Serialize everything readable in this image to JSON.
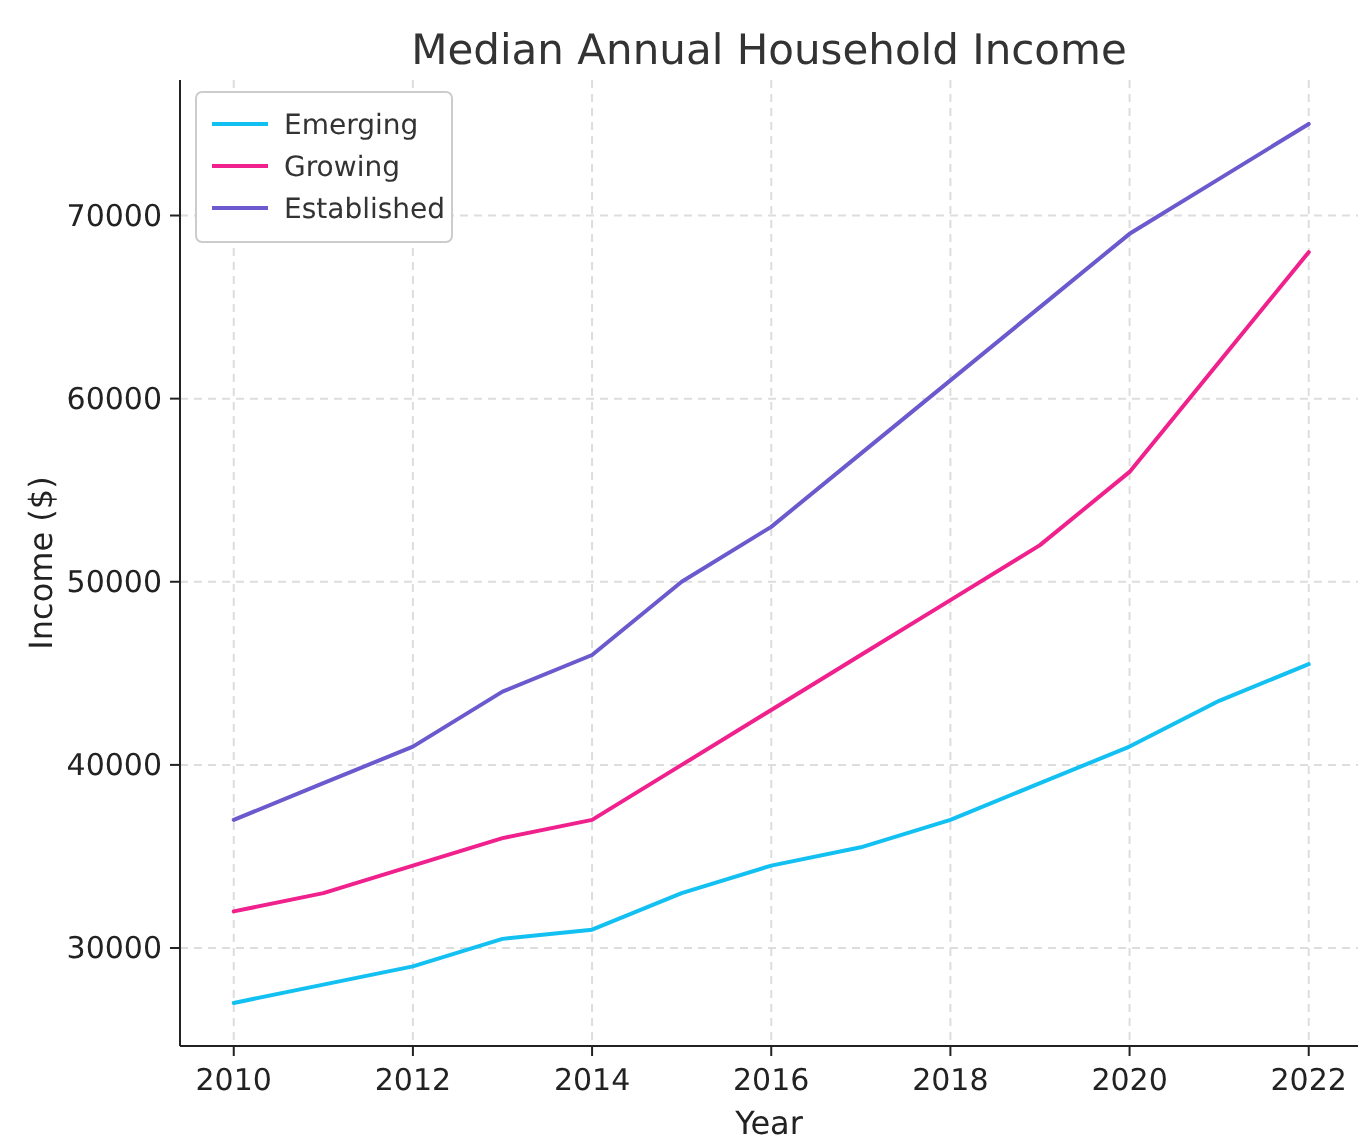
{
  "chart_data": {
    "type": "line",
    "title": "Median Annual Household Income",
    "xlabel": "Year",
    "ylabel": "Income ($)",
    "x": [
      2010,
      2011,
      2012,
      2013,
      2014,
      2015,
      2016,
      2017,
      2018,
      2019,
      2020,
      2021,
      2022
    ],
    "series": [
      {
        "name": "Emerging",
        "color": "#13c0f2",
        "values": [
          27000,
          28000,
          29000,
          30500,
          31000,
          33000,
          34500,
          35500,
          37000,
          39000,
          41000,
          43500,
          45500
        ]
      },
      {
        "name": "Growing",
        "color": "#f0208c",
        "values": [
          32000,
          33000,
          34500,
          36000,
          37000,
          40000,
          43000,
          46000,
          49000,
          52000,
          56000,
          62000,
          68000
        ]
      },
      {
        "name": "Established",
        "color": "#6a5acd",
        "values": [
          37000,
          39000,
          41000,
          44000,
          46000,
          50000,
          53000,
          57000,
          61000,
          65000,
          69000,
          72000,
          75000
        ]
      }
    ],
    "xlim": [
      2009.4,
      2022.55
    ],
    "xticks": [
      2010,
      2012,
      2014,
      2016,
      2018,
      2020,
      2022
    ],
    "ylim": [
      24650,
      77400
    ],
    "yticks": [
      30000,
      40000,
      50000,
      60000,
      70000
    ],
    "grid": true,
    "legend": "top left",
    "line_style": "solid",
    "marker": "none"
  }
}
